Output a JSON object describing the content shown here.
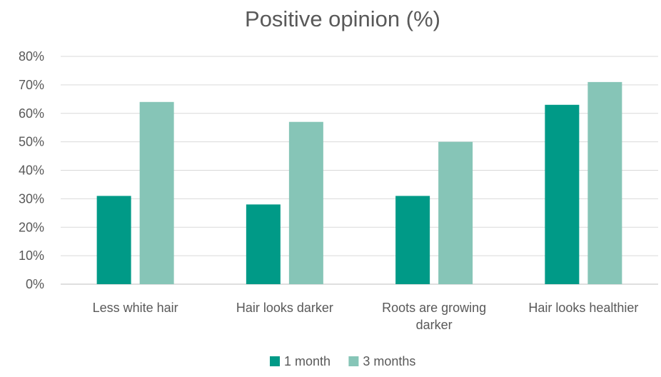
{
  "chart_data": {
    "type": "bar",
    "title": "Positive opinion (%)",
    "categories": [
      [
        "Less white hair"
      ],
      [
        "Hair looks darker"
      ],
      [
        "Roots are growing",
        "darker"
      ],
      [
        "Hair looks healthier"
      ]
    ],
    "series": [
      {
        "name": "1 month",
        "values": [
          31,
          28,
          31,
          63
        ],
        "color": "#009a87"
      },
      {
        "name": "3 months",
        "values": [
          64,
          57,
          50,
          71
        ],
        "color": "#86c5b7"
      }
    ],
    "y_ticks": [
      "0%",
      "10%",
      "20%",
      "30%",
      "40%",
      "50%",
      "60%",
      "70%",
      "80%"
    ],
    "ylim": [
      0,
      80
    ],
    "grid": true,
    "legend_position": "bottom"
  }
}
